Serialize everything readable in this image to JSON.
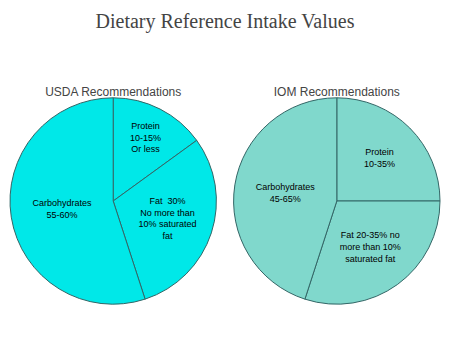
{
  "title": "Dietary Reference Intake Values",
  "chart_data": [
    {
      "type": "pie",
      "subtitle": "USDA Recommendations",
      "categories": [
        "Protein\n10-15%\nOr less",
        "Fat  30%\nNo more than\n10% saturated\nfat",
        "Carbohydrates\n55-60%"
      ],
      "values": [
        15,
        30,
        55
      ],
      "color": "#00e8e8"
    },
    {
      "type": "pie",
      "subtitle": "IOM Recommendations",
      "categories": [
        "Protein\n10-35%",
        "Fat 20-35% no\nmore than 10%\nsaturated fat",
        "Carbohydrates\n45-65%"
      ],
      "values": [
        25,
        30,
        45
      ],
      "color": "#80d8cc"
    }
  ]
}
